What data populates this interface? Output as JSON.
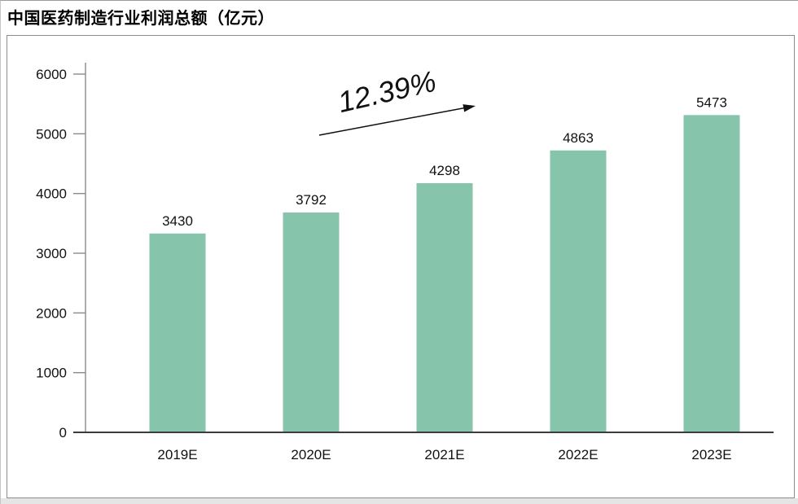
{
  "page": {
    "title": "中国医药制造行业利润总额（亿元）"
  },
  "chart_data": {
    "type": "bar",
    "title": "中国医药制造行业利润总额（亿元）",
    "categories": [
      "2019E",
      "2020E",
      "2021E",
      "2022E",
      "2023E"
    ],
    "values": [
      3430,
      3792,
      4298,
      4863,
      5473
    ],
    "xlabel": "",
    "ylabel": "",
    "ylim": [
      0,
      6000
    ],
    "ytick_interval": 1000,
    "yticks": [
      0,
      1000,
      2000,
      3000,
      4000,
      5000,
      6000
    ],
    "grid": false,
    "legend_position": "none",
    "data_labels": true,
    "annotation": {
      "text": "12.39%"
    },
    "bar_color": "#86C5AC",
    "axis_color": "#8A8A8A",
    "baseline_color": "#3C3C3C",
    "text_color": "#111111"
  }
}
